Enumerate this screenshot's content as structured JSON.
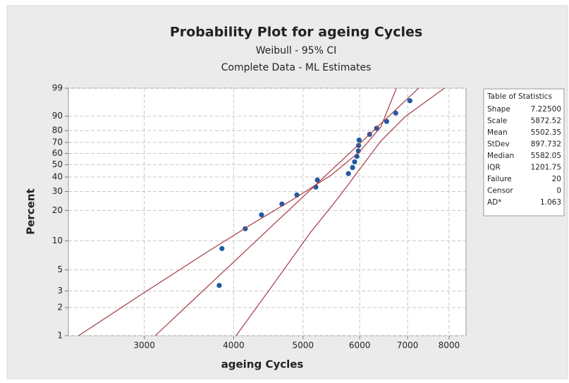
{
  "chart_data": {
    "type": "probability",
    "title": "Probability Plot for ageing Cycles",
    "subtitle": [
      "Weibull - 95% CI",
      "Complete Data - ML Estimates"
    ],
    "xlabel": "ageing Cycles",
    "ylabel": "Percent",
    "xscale": "log",
    "yscale": "weibull",
    "xlim": [
      2350,
      8450
    ],
    "ylim": [
      1,
      99
    ],
    "xticks": [
      3000,
      4000,
      5000,
      6000,
      7000,
      8000
    ],
    "yticks": [
      1,
      2,
      3,
      5,
      10,
      20,
      30,
      40,
      50,
      60,
      70,
      80,
      90,
      99
    ],
    "grid": true,
    "series": [
      {
        "style": "markers",
        "color": "#1f5aa6",
        "x": [
          3818,
          3852,
          4152,
          4375,
          4672,
          4902,
          5211,
          5236,
          5787,
          5864,
          5904,
          5946,
          5974,
          5980,
          5990,
          6195,
          6337,
          6544,
          6738,
          7053
        ],
        "values": [
          3.43,
          8.33,
          13.24,
          18.14,
          23.04,
          27.94,
          32.84,
          37.75,
          42.65,
          47.55,
          52.45,
          57.35,
          62.25,
          67.16,
          72.06,
          76.96,
          81.86,
          86.76,
          91.67,
          96.57
        ]
      },
      {
        "style": "line",
        "color": "#a33a42",
        "x": [
          3107,
          7255
        ],
        "values": [
          1,
          99
        ]
      },
      {
        "style": "line",
        "color": "#a33a42",
        "x": [
          2428,
          2966,
          3639,
          4267,
          4890,
          5479,
          6000,
          6424,
          6753
        ],
        "values": [
          1,
          2.73,
          7.34,
          15.14,
          26.48,
          41.6,
          61.6,
          82.9,
          99
        ]
      },
      {
        "style": "line",
        "color": "#a33a42",
        "x": [
          4031,
          4568,
          5118,
          5605,
          6000,
          6424,
          6955,
          7882
        ],
        "values": [
          1,
          3.72,
          12.06,
          26.48,
          46.1,
          71.2,
          89.9,
          99
        ]
      }
    ],
    "statistics": {
      "title": "Table of Statistics",
      "rows": [
        [
          "Shape",
          "7.22500"
        ],
        [
          "Scale",
          "5872.52"
        ],
        [
          "Mean",
          "5502.35"
        ],
        [
          "StDev",
          "897.732"
        ],
        [
          "Median",
          "5582.05"
        ],
        [
          "IQR",
          "1201.75"
        ],
        [
          "Failure",
          "20"
        ],
        [
          "Censor",
          "0"
        ],
        [
          "AD*",
          "1.063"
        ]
      ]
    }
  }
}
